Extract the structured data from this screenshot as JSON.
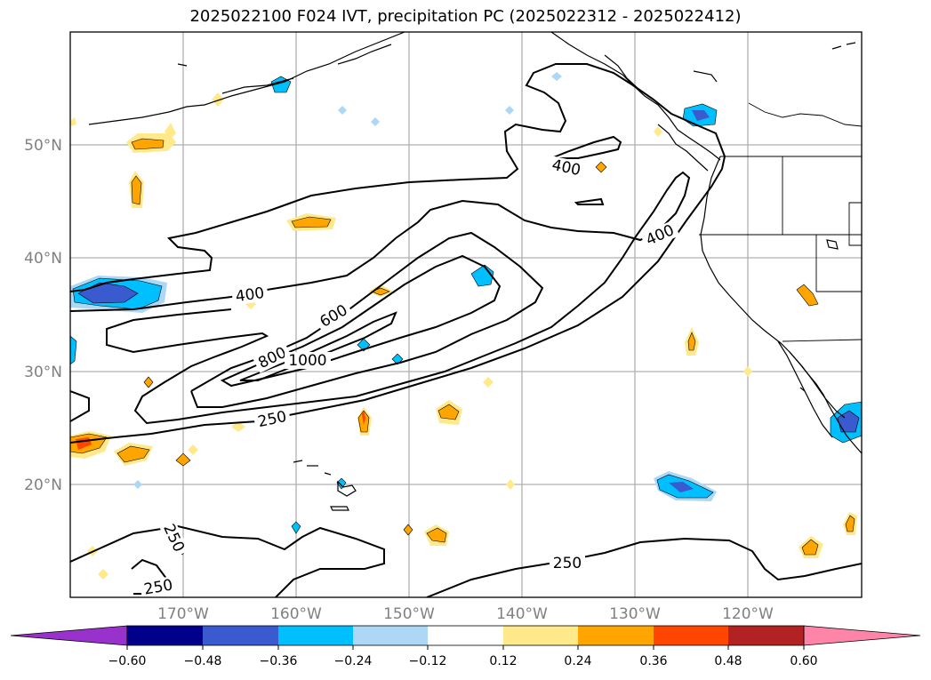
{
  "title": "2025022100 F024 IVT, precipitation PC (2025022312 - 2025022412)",
  "map": {
    "lon_labels": [
      "170°W",
      "160°W",
      "150°W",
      "140°W",
      "130°W",
      "120°W"
    ],
    "lat_labels": [
      "50°N",
      "40°N",
      "30°N",
      "20°N"
    ],
    "contour_labels": [
      "400",
      "400",
      "400",
      "600",
      "800",
      "1000",
      "250",
      "250",
      "250",
      "250"
    ]
  },
  "colorbar": {
    "ticks": [
      "−0.60",
      "−0.48",
      "−0.36",
      "−0.24",
      "−0.12",
      "0.12",
      "0.24",
      "0.36",
      "0.48",
      "0.60"
    ],
    "colors": [
      "#9932cc",
      "#00008b",
      "#3a5bd0",
      "#00bfff",
      "#add8f5",
      "#ffffff",
      "#ffe98a",
      "#ffa500",
      "#ff4500",
      "#b22222",
      "#ff85a8"
    ]
  }
}
